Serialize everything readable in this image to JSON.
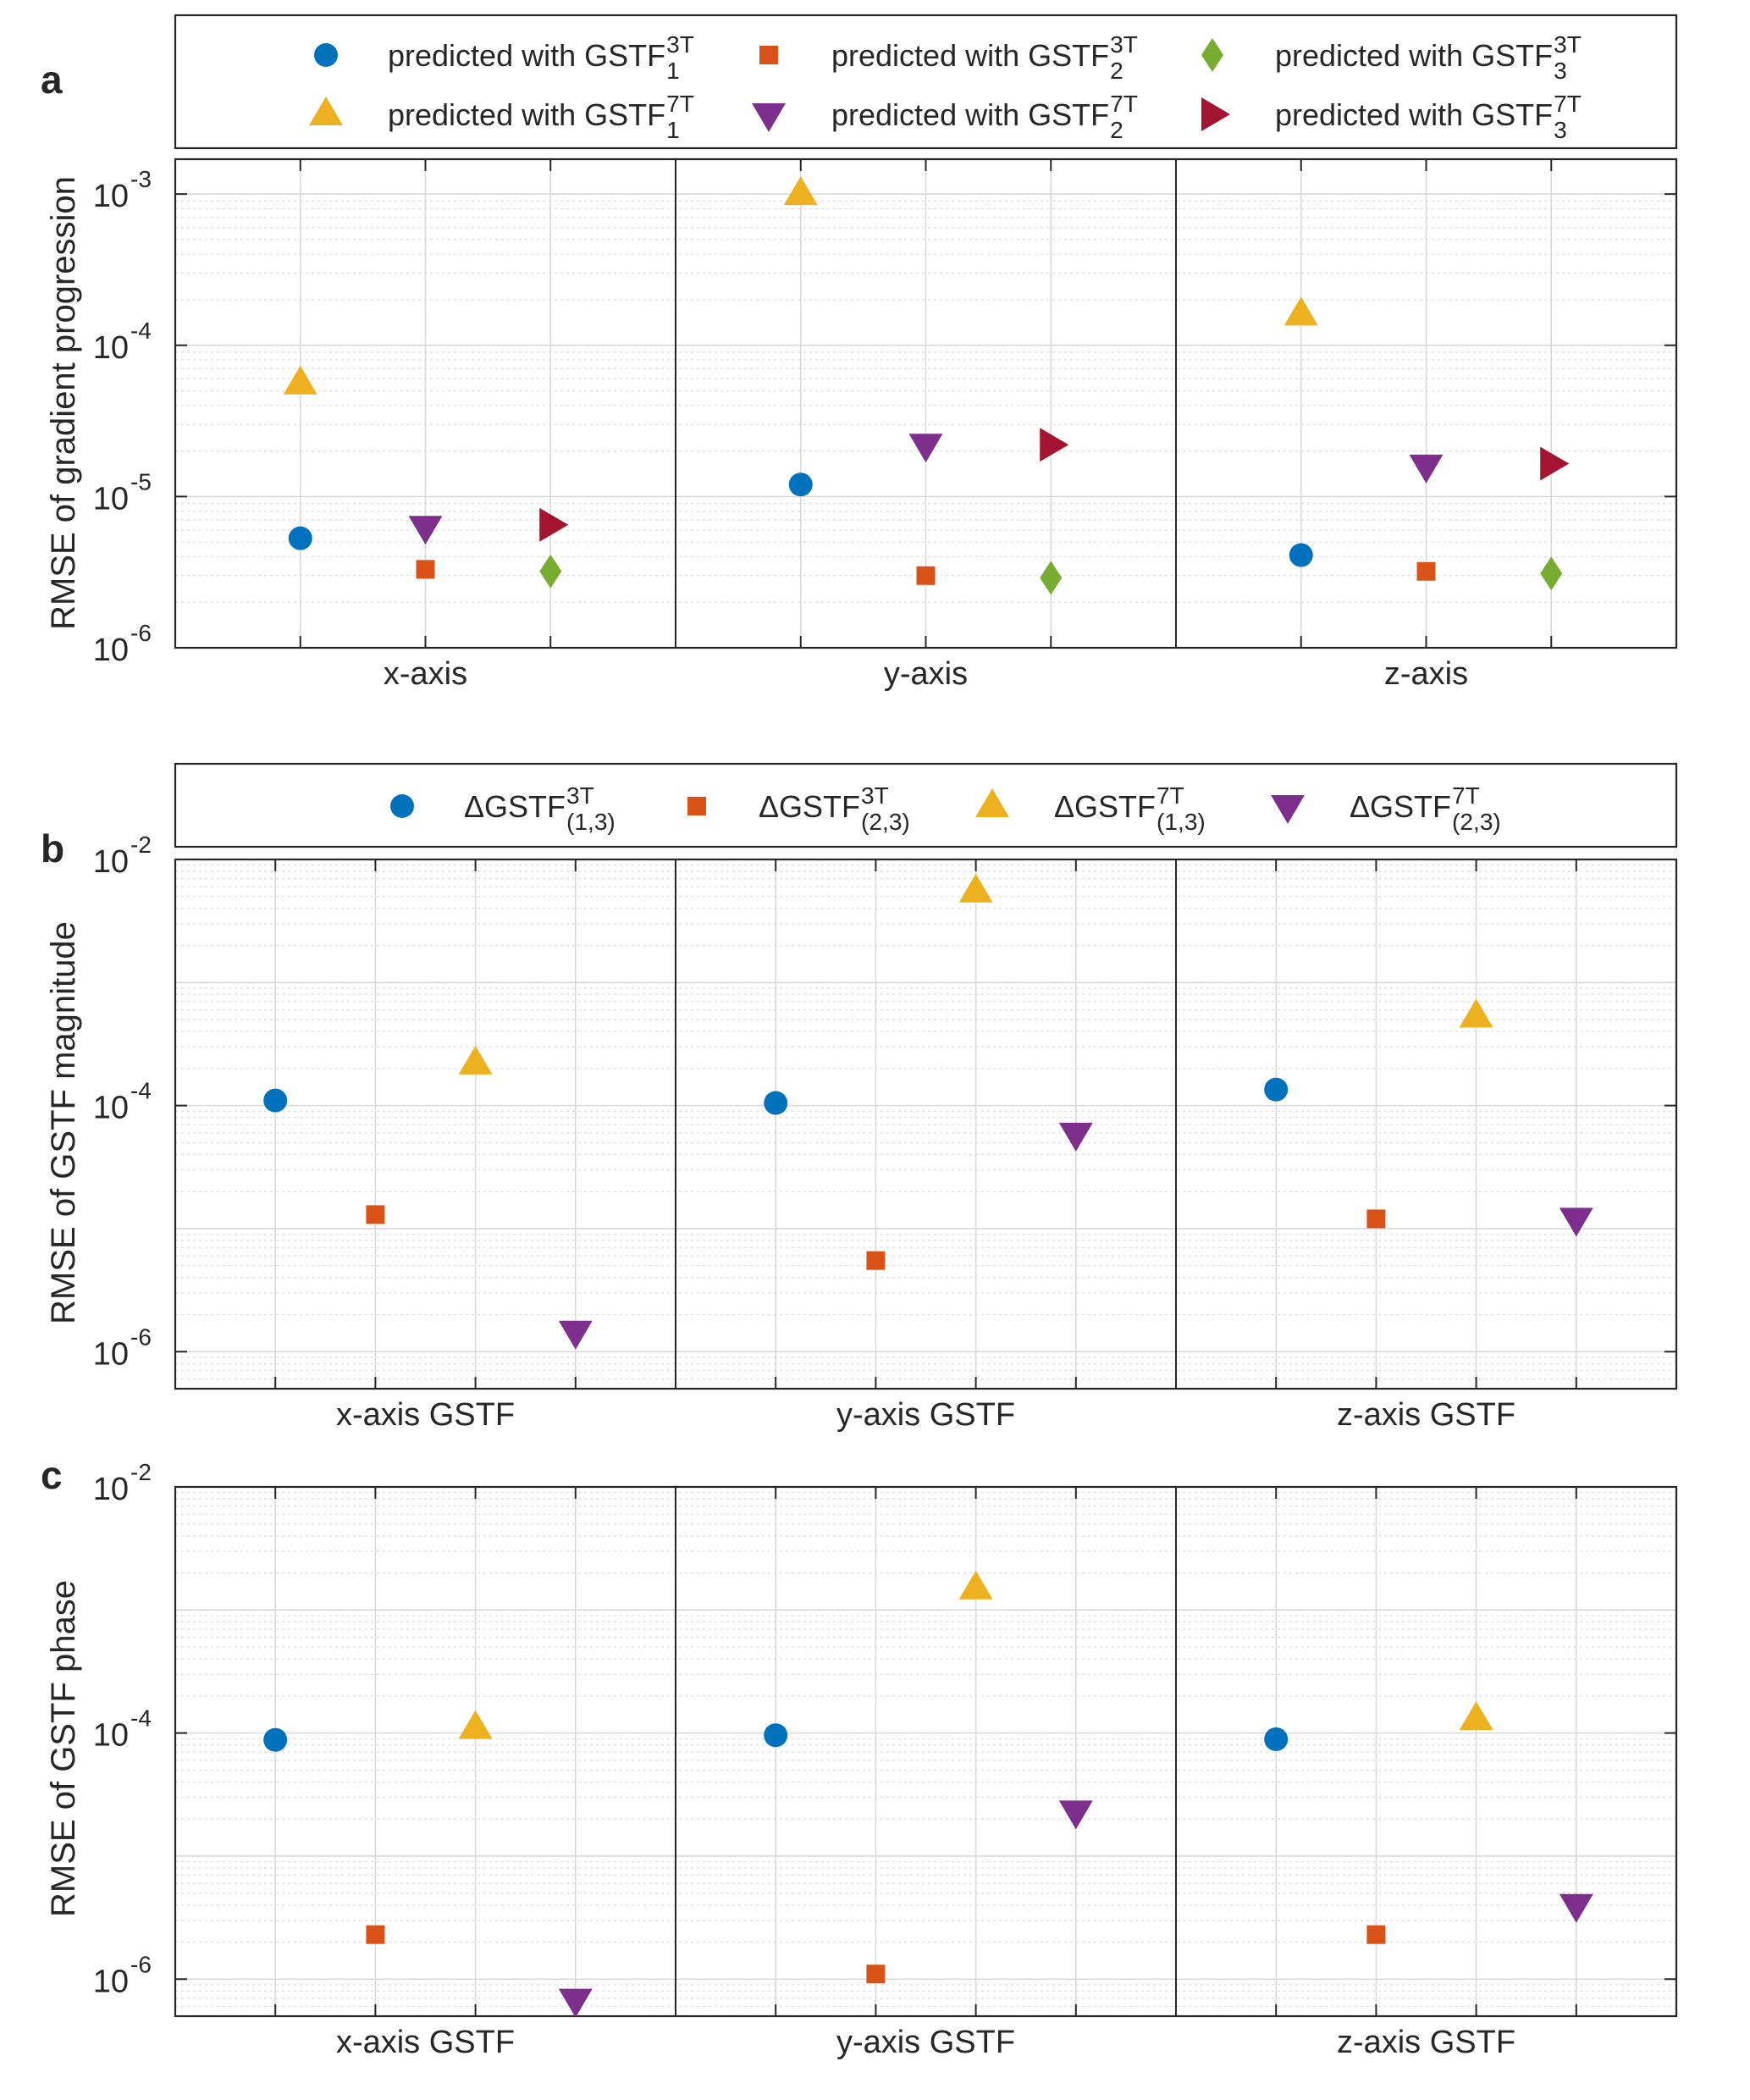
{
  "chart_data": [
    {
      "type": "scatter",
      "panel_label": "a",
      "ylabel": "RMSE of gradient progression",
      "yscale": "log",
      "ylim": [
        1e-06,
        0.0017
      ],
      "yticks": [
        {
          "base": "10",
          "exp": "-6"
        },
        {
          "base": "10",
          "exp": "-5"
        },
        {
          "base": "10",
          "exp": "-4"
        },
        {
          "base": "10",
          "exp": "-3"
        }
      ],
      "groups": [
        "x-axis",
        "y-axis",
        "z-axis"
      ],
      "legend": {
        "columns": 3,
        "entries": [
          {
            "prefix": "predicted with GSTF",
            "sup": "3T",
            "sub": "1"
          },
          {
            "prefix": "predicted with GSTF",
            "sup": "3T",
            "sub": "2"
          },
          {
            "prefix": "predicted with GSTF",
            "sup": "3T",
            "sub": "3"
          },
          {
            "prefix": "predicted with GSTF",
            "sup": "7T",
            "sub": "1"
          },
          {
            "prefix": "predicted with GSTF",
            "sup": "7T",
            "sub": "2"
          },
          {
            "prefix": "predicted with GSTF",
            "sup": "7T",
            "sub": "3"
          }
        ]
      },
      "series": [
        {
          "marker": "circle",
          "color": "#0072BD",
          "slot": 1,
          "values": [
            5.3e-06,
            1.2e-05,
            4.1e-06
          ]
        },
        {
          "marker": "triangle-up",
          "color": "#EDB120",
          "slot": 1,
          "values": [
            5.6e-05,
            0.001,
            0.00016
          ]
        },
        {
          "marker": "square",
          "color": "#D95319",
          "slot": 2,
          "values": [
            3.3e-06,
            3e-06,
            3.2e-06
          ]
        },
        {
          "marker": "triangle-down",
          "color": "#7E2F8E",
          "slot": 2,
          "values": [
            6.3e-06,
            2.2e-05,
            1.6e-05
          ]
        },
        {
          "marker": "diamond",
          "color": "#77AC30",
          "slot": 3,
          "values": [
            3.2e-06,
            2.9e-06,
            3.1e-06
          ]
        },
        {
          "marker": "triangle-right",
          "color": "#A2142F",
          "slot": 3,
          "values": [
            6.5e-06,
            2.2e-05,
            1.65e-05
          ]
        }
      ]
    },
    {
      "type": "scatter",
      "panel_label": "b",
      "ylabel": "RMSE of GSTF magnitude",
      "yscale": "log",
      "ylim": [
        5e-07,
        0.01
      ],
      "yticks": [
        {
          "base": "10",
          "exp": "-6"
        },
        {
          "base": "10",
          "exp": "-4"
        },
        {
          "base": "10",
          "exp": "-2"
        }
      ],
      "groups": [
        "x-axis GSTF",
        "y-axis GSTF",
        "z-axis GSTF"
      ],
      "legend": {
        "columns": 4,
        "entries": [
          {
            "prefix": "ΔGSTF",
            "sup": "3T",
            "sub": "(1,3)"
          },
          {
            "prefix": "ΔGSTF",
            "sup": "3T",
            "sub": "(2,3)"
          },
          {
            "prefix": "ΔGSTF",
            "sup": "7T",
            "sub": "(1,3)"
          },
          {
            "prefix": "ΔGSTF",
            "sup": "7T",
            "sub": "(2,3)"
          }
        ]
      },
      "series": [
        {
          "marker": "circle",
          "color": "#0072BD",
          "slot": 1,
          "values": [
            0.00011,
            0.000105,
            0.000135
          ]
        },
        {
          "marker": "square",
          "color": "#D95319",
          "slot": 2,
          "values": [
            1.3e-05,
            5.5e-06,
            1.2e-05
          ]
        },
        {
          "marker": "triangle-up",
          "color": "#EDB120",
          "slot": 3,
          "values": [
            0.00022,
            0.0055,
            0.00053
          ]
        },
        {
          "marker": "triangle-down",
          "color": "#7E2F8E",
          "slot": 4,
          "values": [
            1.45e-06,
            5.9e-05,
            1.2e-05
          ]
        }
      ]
    },
    {
      "type": "scatter",
      "panel_label": "c",
      "ylabel": "RMSE of GSTF phase",
      "yscale": "log",
      "ylim": [
        5e-07,
        0.01
      ],
      "yticks": [
        {
          "base": "10",
          "exp": "-6"
        },
        {
          "base": "10",
          "exp": "-4"
        },
        {
          "base": "10",
          "exp": "-2"
        }
      ],
      "groups": [
        "x-axis GSTF",
        "y-axis GSTF",
        "z-axis GSTF"
      ],
      "series": [
        {
          "marker": "circle",
          "color": "#0072BD",
          "slot": 1,
          "values": [
            8.8e-05,
            9.6e-05,
            8.9e-05
          ]
        },
        {
          "marker": "square",
          "color": "#D95319",
          "slot": 2,
          "values": [
            2.3e-06,
            1.1e-06,
            2.3e-06
          ]
        },
        {
          "marker": "triangle-up",
          "color": "#EDB120",
          "slot": 3,
          "values": [
            0.00011,
            0.0015,
            0.00013
          ]
        },
        {
          "marker": "triangle-down",
          "color": "#7E2F8E",
          "slot": 4,
          "values": [
            6.8e-07,
            2.3e-05,
            4e-06
          ]
        }
      ]
    }
  ]
}
